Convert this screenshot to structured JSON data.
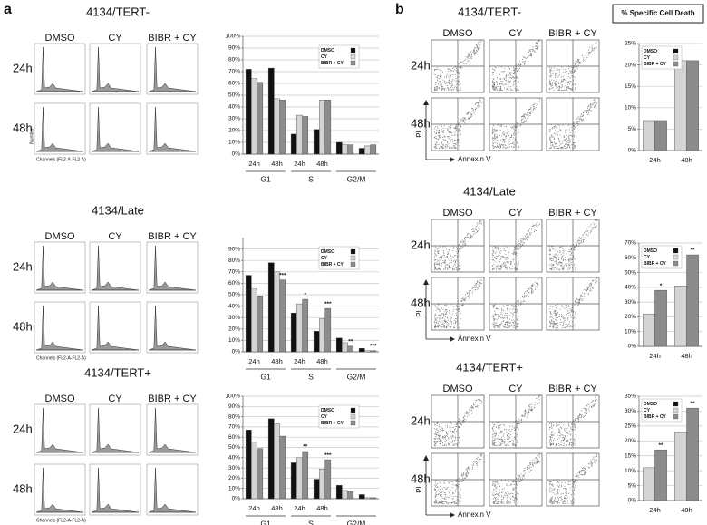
{
  "panels": [
    {
      "label": "a",
      "rows": [
        {
          "title": "4134/TERT-",
          "columns": [
            "DMSO",
            "CY",
            "BIBR + CY"
          ],
          "times": [
            "24h",
            "48h"
          ],
          "y_axis": "Number",
          "x_axis": "Channels (FL2-A-FL2-A)"
        },
        {
          "title": "4134/Late",
          "columns": [
            "DMSO",
            "CY",
            "BIBR + CY"
          ],
          "times": [
            "24h",
            "48h"
          ],
          "x_axis": "Channels (FL2-A-FL2-A)"
        },
        {
          "title": "4134/TERT+",
          "columns": [
            "DMSO",
            "CY",
            "BIBR + CY"
          ],
          "times": [
            "24h",
            "48h"
          ],
          "x_axis": "Channels (FL2-A-FL2-A)"
        }
      ]
    },
    {
      "label": "b",
      "header": "% Specific Cell Death",
      "rows": [
        {
          "title": "4134/TERT-",
          "columns": [
            "DMSO",
            "CY",
            "BIBR + CY"
          ],
          "times": [
            "24h",
            "48h"
          ],
          "y_axis": "PI",
          "x_axis": "Annexin V"
        },
        {
          "title": "4134/Late",
          "columns": [
            "DMSO",
            "CY",
            "BIBR + CY"
          ],
          "times": [
            "24h",
            "48h"
          ],
          "y_axis": "PI",
          "x_axis": "Annexin V"
        },
        {
          "title": "4134/TERT+",
          "columns": [
            "DMSO",
            "CY",
            "BIBR + CY"
          ],
          "times": [
            "24h",
            "48h"
          ],
          "y_axis": "PI",
          "x_axis": "Annexin V"
        }
      ]
    }
  ],
  "chart_data": [
    {
      "type": "bar",
      "categories": [
        "24h",
        "48h",
        "24h",
        "48h",
        null,
        null
      ],
      "groups": [
        "G1",
        "S",
        "G2/M"
      ],
      "series": [
        {
          "name": "DMSO",
          "color": "#111111",
          "values": [
            72,
            73,
            17,
            21,
            10,
            5
          ]
        },
        {
          "name": "CY",
          "color": "#d4d4d4",
          "values": [
            64,
            47,
            33,
            46,
            8,
            7
          ]
        },
        {
          "name": "BIBR + CY",
          "color": "#8c8c8c",
          "values": [
            61,
            46,
            32,
            46,
            8,
            8
          ]
        }
      ],
      "ylim": [
        0,
        100
      ],
      "yticks": [
        {
          "value": 0,
          "label": "0%"
        },
        {
          "value": 10,
          "label": "10%"
        },
        {
          "value": 20,
          "label": "20%"
        },
        {
          "value": 30,
          "label": "30%"
        },
        {
          "value": 40,
          "label": "40%"
        },
        {
          "value": 50,
          "label": "50%"
        },
        {
          "value": 60,
          "label": "60%"
        },
        {
          "value": 70,
          "label": "70%"
        },
        {
          "value": 80,
          "label": "80%"
        },
        {
          "value": 90,
          "label": "90%"
        },
        {
          "value": 100,
          "label": "100%"
        }
      ],
      "grid": true,
      "legend": "upper right"
    },
    {
      "type": "bar",
      "categories": [
        "24h",
        "48h",
        "24h",
        "48h",
        null,
        null
      ],
      "groups": [
        "G1",
        "S",
        "G2/M"
      ],
      "series": [
        {
          "name": "DMSO",
          "color": "#111111",
          "values": [
            67,
            78,
            34,
            18,
            12,
            3
          ]
        },
        {
          "name": "CY",
          "color": "#d4d4d4",
          "values": [
            55,
            70,
            42,
            29,
            8,
            1
          ]
        },
        {
          "name": "BIBR + CY",
          "color": "#8c8c8c",
          "values": [
            49,
            63,
            46,
            38,
            5,
            1
          ],
          "significance": [
            null,
            "***",
            "*",
            "***",
            "**",
            "***"
          ]
        }
      ],
      "ylim": [
        0,
        100
      ],
      "yticks": [
        {
          "value": 0,
          "label": "0%"
        },
        {
          "value": 10,
          "label": "10%"
        },
        {
          "value": 20,
          "label": "20%"
        },
        {
          "value": 30,
          "label": "30%"
        },
        {
          "value": 40,
          "label": "40%"
        },
        {
          "value": 50,
          "label": "50%"
        },
        {
          "value": 60,
          "label": "60%"
        },
        {
          "value": 70,
          "label": "70%"
        },
        {
          "value": 80,
          "label": "80%"
        },
        {
          "value": 90,
          "label": "90%"
        }
      ],
      "grid": true,
      "legend": "upper right"
    },
    {
      "type": "bar",
      "categories": [
        "24h",
        "48h",
        "24h",
        "48h",
        null,
        null
      ],
      "groups": [
        "G1",
        "S",
        "G2/M"
      ],
      "series": [
        {
          "name": "DMSO",
          "color": "#111111",
          "values": [
            67,
            78,
            35,
            19,
            13,
            4
          ]
        },
        {
          "name": "CY",
          "color": "#d4d4d4",
          "values": [
            55,
            73,
            40,
            29,
            8,
            1
          ]
        },
        {
          "name": "BIBR + CY",
          "color": "#8c8c8c",
          "values": [
            49,
            61,
            46,
            38,
            7,
            1
          ],
          "significance": [
            null,
            null,
            "**",
            "***",
            null,
            null
          ]
        }
      ],
      "ylim": [
        0,
        100
      ],
      "yticks": [
        {
          "value": 0,
          "label": "0%"
        },
        {
          "value": 10,
          "label": "10%"
        },
        {
          "value": 20,
          "label": "20%"
        },
        {
          "value": 30,
          "label": "30%"
        },
        {
          "value": 40,
          "label": "40%"
        },
        {
          "value": 50,
          "label": "50%"
        },
        {
          "value": 60,
          "label": "60%"
        },
        {
          "value": 70,
          "label": "70%"
        },
        {
          "value": 80,
          "label": "80%"
        },
        {
          "value": 90,
          "label": "90%"
        },
        {
          "value": 100,
          "label": "100%"
        }
      ],
      "grid": true,
      "legend": "upper right"
    },
    {
      "type": "bar",
      "categories": [
        "24h",
        "48h"
      ],
      "series": [
        {
          "name": "DMSO",
          "color": "#111111",
          "values": [
            null,
            null
          ]
        },
        {
          "name": "CY",
          "color": "#d4d4d4",
          "values": [
            7,
            21
          ]
        },
        {
          "name": "BIBR + CY",
          "color": "#8c8c8c",
          "values": [
            7,
            21
          ]
        }
      ],
      "ylim": [
        0,
        25
      ],
      "yticks": [
        {
          "value": 0,
          "label": "0%"
        },
        {
          "value": 5,
          "label": "5%"
        },
        {
          "value": 10,
          "label": "10%"
        },
        {
          "value": 15,
          "label": "15%"
        },
        {
          "value": 20,
          "label": "20%"
        },
        {
          "value": 25,
          "label": "25%"
        }
      ],
      "grid": true,
      "legend": "upper left"
    },
    {
      "type": "bar",
      "categories": [
        "24h",
        "48h"
      ],
      "series": [
        {
          "name": "DMSO",
          "color": "#111111",
          "values": [
            null,
            null
          ]
        },
        {
          "name": "CY",
          "color": "#d4d4d4",
          "values": [
            22,
            41
          ]
        },
        {
          "name": "BIBR + CY",
          "color": "#8c8c8c",
          "values": [
            38,
            62
          ],
          "significance": [
            "*",
            "**"
          ]
        }
      ],
      "ylim": [
        0,
        70
      ],
      "yticks": [
        {
          "value": 0,
          "label": "0%"
        },
        {
          "value": 10,
          "label": "10%"
        },
        {
          "value": 20,
          "label": "20%"
        },
        {
          "value": 30,
          "label": "30%"
        },
        {
          "value": 40,
          "label": "40%"
        },
        {
          "value": 50,
          "label": "50%"
        },
        {
          "value": 60,
          "label": "60%"
        },
        {
          "value": 70,
          "label": "70%"
        }
      ],
      "grid": true,
      "legend": "upper left"
    },
    {
      "type": "bar",
      "categories": [
        "24h",
        "48h"
      ],
      "series": [
        {
          "name": "DMSO",
          "color": "#111111",
          "values": [
            null,
            null
          ]
        },
        {
          "name": "CY",
          "color": "#d4d4d4",
          "values": [
            11,
            23
          ]
        },
        {
          "name": "BIBR + CY",
          "color": "#8c8c8c",
          "values": [
            17,
            31
          ],
          "significance": [
            "**",
            "**"
          ]
        }
      ],
      "ylim": [
        0,
        35
      ],
      "yticks": [
        {
          "value": 0,
          "label": "0%"
        },
        {
          "value": 5,
          "label": "5%"
        },
        {
          "value": 10,
          "label": "10%"
        },
        {
          "value": 15,
          "label": "15%"
        },
        {
          "value": 20,
          "label": "20%"
        },
        {
          "value": 25,
          "label": "25%"
        },
        {
          "value": 30,
          "label": "30%"
        },
        {
          "value": 35,
          "label": "35%"
        }
      ],
      "grid": true,
      "legend": "upper left"
    }
  ]
}
